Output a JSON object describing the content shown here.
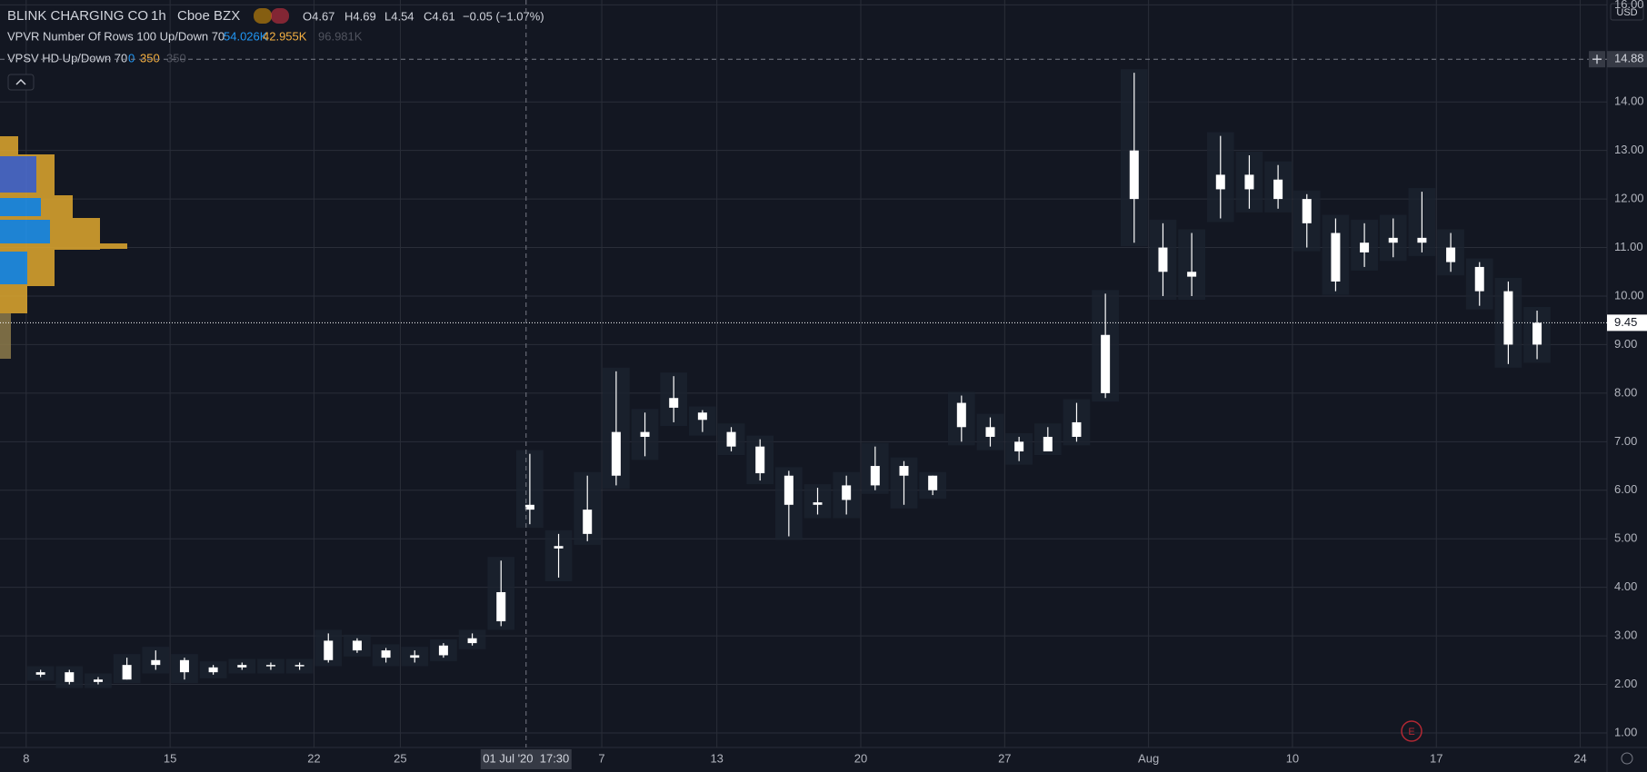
{
  "chart_data": {
    "type": "candlestick",
    "symbol": "BLINK CHARGING CO",
    "interval": "1h",
    "exchange": "Cboe BZX",
    "ohlc_legend": [
      "O4.67",
      "H4.69",
      "L4.54",
      "C4.61",
      "−0.05 (−1.07%)"
    ],
    "indicators": [
      {
        "name": "VPVR Number Of Rows 100 Up/Down 70",
        "values": [
          "54.026K",
          "42.955K",
          "96.981K"
        ]
      },
      {
        "name": "VPSV HD Up/Down 70",
        "values": [
          "0",
          "350",
          "350"
        ]
      }
    ],
    "currency": "USD",
    "x": [
      0,
      1,
      2,
      3,
      4,
      5,
      6,
      7,
      8,
      9,
      10,
      11,
      12,
      13,
      14,
      15,
      16,
      17,
      18,
      19,
      20,
      21,
      22,
      23,
      24,
      25,
      26,
      27,
      28,
      29,
      30,
      31,
      32,
      33,
      34,
      35,
      36,
      37,
      38,
      39,
      40,
      41,
      42,
      43,
      44,
      45,
      46,
      47,
      48,
      49,
      50,
      51,
      52
    ],
    "open": [
      2.2,
      2.25,
      2.05,
      2.1,
      2.4,
      2.5,
      2.25,
      2.35,
      2.4,
      2.38,
      2.5,
      2.9,
      2.7,
      2.55,
      2.6,
      2.85,
      3.3,
      5.6,
      4.8,
      5.6,
      6.3,
      7.2,
      7.9,
      7.6,
      7.2,
      6.9,
      6.3,
      5.7,
      5.8,
      6.1,
      6.5,
      6.3,
      7.8,
      7.3,
      7.0,
      6.8,
      7.1,
      8.0,
      13.0,
      11.0,
      10.5,
      12.5,
      12.2,
      12.4,
      12.0,
      11.3,
      10.9,
      11.1,
      11.2,
      11.0,
      10.6,
      10.1,
      9.0
    ],
    "high": [
      2.3,
      2.3,
      2.15,
      2.55,
      2.7,
      2.55,
      2.4,
      2.45,
      2.45,
      2.45,
      3.05,
      2.95,
      2.75,
      2.7,
      2.85,
      3.05,
      4.55,
      6.75,
      5.1,
      6.3,
      8.45,
      7.6,
      8.35,
      7.65,
      7.3,
      7.05,
      6.4,
      6.05,
      6.3,
      6.9,
      6.6,
      6.3,
      7.95,
      7.5,
      7.1,
      7.3,
      7.8,
      10.05,
      14.6,
      11.5,
      11.3,
      13.3,
      12.9,
      12.7,
      12.1,
      11.6,
      11.5,
      11.6,
      12.15,
      11.3,
      10.7,
      10.3,
      9.7
    ],
    "low": [
      2.15,
      2.0,
      2.0,
      2.1,
      2.3,
      2.1,
      2.2,
      2.3,
      2.3,
      2.3,
      2.45,
      2.65,
      2.45,
      2.45,
      2.55,
      2.8,
      3.2,
      5.3,
      4.2,
      4.95,
      6.1,
      6.7,
      7.4,
      7.2,
      6.8,
      6.2,
      5.05,
      5.5,
      5.5,
      6.0,
      5.7,
      5.9,
      7.0,
      6.9,
      6.6,
      6.8,
      7.0,
      7.9,
      11.1,
      10.0,
      10.0,
      11.6,
      11.8,
      11.8,
      11.0,
      10.1,
      10.6,
      10.8,
      10.9,
      10.5,
      9.8,
      8.6,
      8.7
    ],
    "close": [
      2.25,
      2.05,
      2.1,
      2.4,
      2.5,
      2.25,
      2.35,
      2.4,
      2.38,
      2.4,
      2.9,
      2.7,
      2.55,
      2.6,
      2.8,
      2.95,
      3.9,
      5.7,
      4.85,
      5.1,
      7.2,
      7.1,
      7.7,
      7.45,
      6.9,
      6.35,
      5.7,
      5.75,
      6.1,
      6.5,
      6.3,
      6.0,
      7.3,
      7.1,
      6.8,
      7.1,
      7.4,
      9.2,
      12.0,
      10.5,
      10.4,
      12.2,
      12.5,
      12.0,
      11.5,
      10.3,
      11.1,
      11.2,
      11.1,
      10.7,
      10.1,
      9.0,
      9.45
    ],
    "xlim": [
      -0.91,
      54.93
    ],
    "xticks": [
      {
        "value": 0,
        "label": "8"
      },
      {
        "value": 5,
        "label": "15"
      },
      {
        "value": 10,
        "label": "22"
      },
      {
        "value": 13,
        "label": "25"
      },
      {
        "value": 20,
        "label": "7"
      },
      {
        "value": 24,
        "label": "13"
      },
      {
        "value": 29,
        "label": "20"
      },
      {
        "value": 34,
        "label": "27"
      },
      {
        "value": 39,
        "label": "Aug"
      },
      {
        "value": 44,
        "label": "10"
      },
      {
        "value": 49,
        "label": "17"
      },
      {
        "value": 54,
        "label": "24"
      }
    ],
    "ylim": [
      0.7,
      16.1
    ],
    "yticks": [
      {
        "value": 1,
        "label": "1.00"
      },
      {
        "value": 2,
        "label": "2.00"
      },
      {
        "value": 3,
        "label": "3.00"
      },
      {
        "value": 4,
        "label": "4.00"
      },
      {
        "value": 5,
        "label": "5.00"
      },
      {
        "value": 6,
        "label": "6.00"
      },
      {
        "value": 7,
        "label": "7.00"
      },
      {
        "value": 8,
        "label": "8.00"
      },
      {
        "value": 9,
        "label": "9.00"
      },
      {
        "value": 10,
        "label": "10.00"
      },
      {
        "value": 11,
        "label": "11.00"
      },
      {
        "value": 12,
        "label": "12.00"
      },
      {
        "value": 13,
        "label": "13.00"
      },
      {
        "value": 14,
        "label": "14.00"
      },
      {
        "value": 16,
        "label": "16.00"
      }
    ],
    "crosshair": {
      "x": 17.37,
      "x_label": "01 Jul '20  17:30",
      "price": {
        "value": 14.88,
        "label": "14.88"
      }
    },
    "last_price": {
      "value": 9.45,
      "label": "9.45"
    },
    "earnings_marker": {
      "x": 48.14,
      "label": "E"
    },
    "grid": true,
    "candle_color": "#ffffff"
  }
}
